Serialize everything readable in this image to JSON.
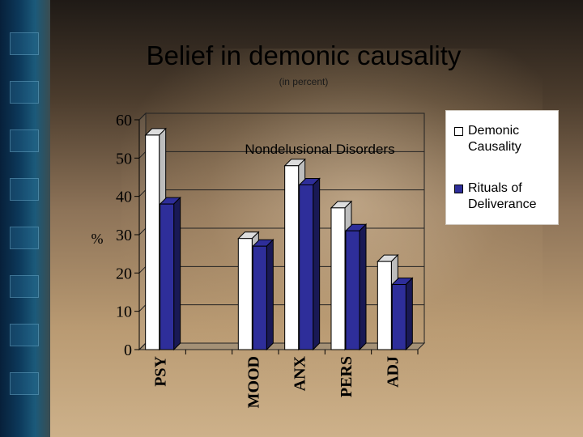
{
  "slide": {
    "title": "Belief in demonic causality",
    "subtitle": "(in percent)"
  },
  "chart_data": {
    "type": "bar",
    "title": "Nondelusional Disorders",
    "ylabel": "%",
    "xlabel": "",
    "ylim": [
      0,
      60
    ],
    "yticks": [
      0,
      10,
      20,
      30,
      40,
      50,
      60
    ],
    "grid": true,
    "legend_position": "right",
    "categories": [
      "PSY",
      "",
      "MOOD",
      "ANX",
      "PERS",
      "ADJ"
    ],
    "series": [
      {
        "name": "Demonic Causality",
        "color": "#ffffff",
        "values": [
          56,
          null,
          29,
          48,
          37,
          23
        ]
      },
      {
        "name": "Rituals of Deliverance",
        "color": "#2e2e9a",
        "values": [
          38,
          null,
          27,
          43,
          31,
          17
        ]
      }
    ]
  }
}
